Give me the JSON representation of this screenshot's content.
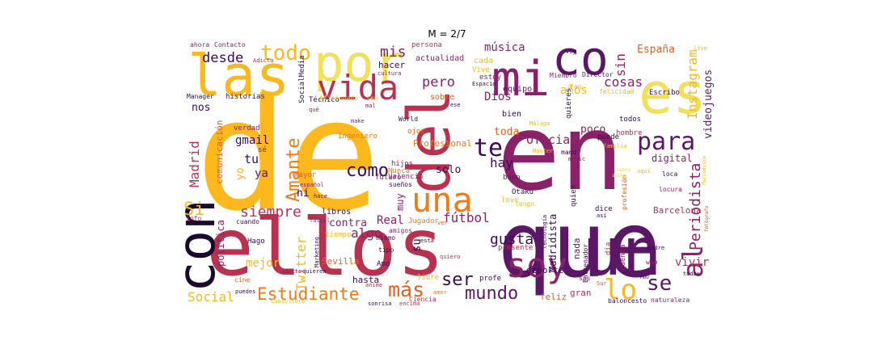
{
  "title": "M = 2/7",
  "palette": [
    "#fcb81c",
    "#f0e05a",
    "#e85e1e",
    "#f07b14",
    "#b8324f",
    "#8a226a",
    "#5a1765",
    "#3a0b58",
    "#1a0a2e",
    "#000004"
  ],
  "words": [
    {
      "text": "de",
      "color": "#fcb81c"
    },
    {
      "text": "en",
      "color": "#8a226a"
    },
    {
      "text": "que",
      "color": "#5a1765"
    },
    {
      "text": "ellos",
      "color": "#b8324f"
    },
    {
      "text": "las",
      "color": "#fcb81c"
    },
    {
      "text": "por",
      "color": "#f0e05a"
    },
    {
      "text": "mi",
      "color": "#8a226a"
    },
    {
      "text": "co",
      "color": "#5a1765"
    },
    {
      "text": "es",
      "color": "#f0e05a"
    },
    {
      "text": "del",
      "color": "#b8324f"
    },
    {
      "text": "un",
      "color": "#5a1765"
    },
    {
      "text": "con",
      "color": "#1a0a2e"
    },
    {
      "text": "vida",
      "color": "#b8324f"
    },
    {
      "text": "una",
      "color": "#f07b14"
    },
    {
      "text": "soy",
      "color": "#8a226a"
    },
    {
      "text": "lo",
      "color": "#fcb81c"
    },
    {
      "text": "al",
      "color": "#8a226a"
    },
    {
      "text": "todo",
      "color": "#fcb81c"
    },
    {
      "text": "para",
      "color": "#5a1765"
    },
    {
      "text": "te",
      "color": "#3a0b58"
    },
    {
      "text": "se",
      "color": "#5a1765"
    },
    {
      "text": "como",
      "color": "#3a0b58"
    },
    {
      "text": "ser",
      "color": "#3a0b58"
    },
    {
      "text": "más",
      "color": "#e85e1e"
    },
    {
      "text": "mundo",
      "color": "#5a1765"
    },
    {
      "text": "Estudiante",
      "color": "#f07b14"
    },
    {
      "text": "Si",
      "color": "#fcb81c"
    },
    {
      "text": "Amante",
      "color": "#f07b14"
    },
    {
      "text": "siempre",
      "color": "#b8324f"
    },
    {
      "text": "gusta",
      "color": "#3a0b58"
    },
    {
      "text": "Periodista",
      "color": "#8a226a"
    },
    {
      "text": "Instagram",
      "color": "#fcb81c"
    },
    {
      "text": "desde",
      "color": "#3a0b58"
    },
    {
      "text": "mis",
      "color": "#8a226a"
    },
    {
      "text": "pero",
      "color": "#8a226a"
    },
    {
      "text": "cosas",
      "color": "#8a226a"
    },
    {
      "text": "sin",
      "color": "#8a226a"
    },
    {
      "text": "fútbol",
      "color": "#8a226a"
    },
    {
      "text": "Madrid",
      "color": "#b8324f"
    },
    {
      "text": "Social",
      "color": "#fcb81c"
    },
    {
      "text": "Twitter",
      "color": "#fcb81c"
    },
    {
      "text": "Oficial",
      "color": "#8a226a"
    },
    {
      "text": "música",
      "color": "#8a226a"
    },
    {
      "text": "España",
      "color": "#e85e1e"
    },
    {
      "text": "Dios",
      "color": "#8a226a"
    },
    {
      "text": "años",
      "color": "#fcb81c"
    },
    {
      "text": "videojuegos",
      "color": "#5a1765"
    },
    {
      "text": "hay",
      "color": "#3a0b58"
    },
    {
      "text": "solo",
      "color": "#3a0b58"
    },
    {
      "text": "gmail",
      "color": "#3a0b58"
    },
    {
      "text": "tu",
      "color": "#3a0b58"
    },
    {
      "text": "yo",
      "color": "#fcb81c"
    },
    {
      "text": "ya",
      "color": "#5a1765"
    },
    {
      "text": "nos",
      "color": "#3a0b58"
    },
    {
      "text": "su",
      "color": "#3a0b58"
    },
    {
      "text": "muy",
      "color": "#8a226a"
    },
    {
      "text": "Real",
      "color": "#8a226a"
    },
    {
      "text": "algo",
      "color": "#8a226a"
    },
    {
      "text": "contra",
      "color": "#8a226a"
    },
    {
      "text": "mejor",
      "color": "#fcb81c"
    },
    {
      "text": "política",
      "color": "#8a226a"
    },
    {
      "text": "Madridista",
      "color": "#3a0b58"
    },
    {
      "text": "nada",
      "color": "#5a1765"
    },
    {
      "text": "poco",
      "color": "#8a226a"
    },
    {
      "text": "toda",
      "color": "#e85e1e"
    },
    {
      "text": "vivir",
      "color": "#b8324f"
    },
    {
      "text": "digital",
      "color": "#8a226a"
    },
    {
      "text": "Barcelona",
      "color": "#b8324f"
    },
    {
      "text": "deporte",
      "color": "#3a0b58"
    },
    {
      "text": "Profesional",
      "color": "#f07b14"
    },
    {
      "text": "Sevilla",
      "color": "#e85e1e"
    },
    {
      "text": "hasta",
      "color": "#3a0b58"
    },
    {
      "text": "Valencia",
      "color": "#8a226a"
    },
    {
      "text": "hijos",
      "color": "#8a226a"
    },
    {
      "text": "futuro",
      "color": "#8a226a"
    },
    {
      "text": "Ingeniero",
      "color": "#f07b14"
    },
    {
      "text": "ojos",
      "color": "#e85e1e"
    },
    {
      "text": "Nunca",
      "color": "#f07b14"
    },
    {
      "text": "sueños",
      "color": "#3a0b58"
    },
    {
      "text": "hacer",
      "color": "#3a0b58"
    },
    {
      "text": "actualidad",
      "color": "#8a226a"
    },
    {
      "text": "cada",
      "color": "#fcb81c"
    },
    {
      "text": "Vive",
      "color": "#fcb81c"
    },
    {
      "text": "estoy",
      "color": "#8a226a"
    },
    {
      "text": "persona",
      "color": "#b8324f"
    },
    {
      "text": "ahora",
      "color": "#8a226a"
    },
    {
      "text": "Contacto",
      "color": "#8a226a"
    },
    {
      "text": "Adicta",
      "color": "#b8324f"
    },
    {
      "text": "SocialMedia",
      "color": "#3a0b58"
    },
    {
      "text": "Manager",
      "color": "#3a0b58"
    },
    {
      "text": "historias",
      "color": "#3a0b58"
    },
    {
      "text": "Técnico",
      "color": "#3a0b58"
    },
    {
      "text": "Aficionado",
      "color": "#fcb81c"
    },
    {
      "text": "son",
      "color": "#fcb81c"
    },
    {
      "text": "mal",
      "color": "#8a226a"
    },
    {
      "text": "sobre",
      "color": "#e85e1e"
    },
    {
      "text": "ese",
      "color": "#3a0b58"
    },
    {
      "text": "equipo",
      "color": "#5a1765"
    },
    {
      "text": "Miembro",
      "color": "#8a226a"
    },
    {
      "text": "Director",
      "color": "#5a1765"
    },
    {
      "text": "Fan",
      "color": "#fcb81c"
    },
    {
      "text": "felicidad",
      "color": "#fcb81c"
    },
    {
      "text": "Escribo",
      "color": "#3a0b58"
    },
    {
      "text": "bien",
      "color": "#3a0b58"
    },
    {
      "text": "World",
      "color": "#3a0b58"
    },
    {
      "text": "quieres",
      "color": "#3a0b58"
    },
    {
      "text": "todos",
      "color": "#3a0b58"
    },
    {
      "text": "hombre",
      "color": "#b8324f"
    },
    {
      "text": "puede",
      "color": "#3a0b58"
    },
    {
      "text": "verdad",
      "color": "#8a226a"
    },
    {
      "text": "comunicación",
      "color": "#e85e1e"
    },
    {
      "text": "sé",
      "color": "#8a226a"
    },
    {
      "text": "mayor",
      "color": "#e85e1e"
    },
    {
      "text": "ni",
      "color": "#3a0b58"
    },
    {
      "text": "libros",
      "color": "#3a0b58"
    },
    {
      "text": "amigos",
      "color": "#8a226a"
    },
    {
      "text": "Jugador",
      "color": "#f07b14"
    },
    {
      "text": "mismo",
      "color": "#3a0b58"
    },
    {
      "text": "tipo",
      "color": "#3a0b58"
    },
    {
      "text": "quiero",
      "color": "#b8324f"
    },
    {
      "text": "Amo",
      "color": "#3a0b58"
    },
    {
      "text": "profe",
      "color": "#3a0b58"
    },
    {
      "text": "presente",
      "color": "#b8324f"
    },
    {
      "text": "feliz",
      "color": "#e85e1e"
    },
    {
      "text": "gran",
      "color": "#b8324f"
    },
    {
      "text": "baloncesto",
      "color": "#3a0b58"
    },
    {
      "text": "naturaleza",
      "color": "#8a226a"
    },
    {
      "text": "Ciencia",
      "color": "#b8324f"
    },
    {
      "text": "sonrisa",
      "color": "#3a0b58"
    },
    {
      "text": "encima",
      "color": "#b8324f"
    },
    {
      "text": "amor",
      "color": "#f07b14"
    },
    {
      "text": "libre",
      "color": "#fcb81c"
    },
    {
      "text": "anime",
      "color": "#b8324f"
    },
    {
      "text": "Consultora",
      "color": "#fcb81c"
    },
    {
      "text": "puedes",
      "color": "#3a0b58"
    },
    {
      "text": "adicto",
      "color": "#8a226a"
    },
    {
      "text": "quieren",
      "color": "#3a0b58"
    },
    {
      "text": "cine",
      "color": "#e85e1e"
    },
    {
      "text": "Hago",
      "color": "#3a0b58"
    },
    {
      "text": "cuando",
      "color": "#3a0b58"
    },
    {
      "text": "info",
      "color": "#b8324f"
    },
    {
      "text": "hace",
      "color": "#5a1765"
    },
    {
      "text": "español",
      "color": "#8a226a"
    },
    {
      "text": "tiempo",
      "color": "#fcb81c"
    },
    {
      "text": "Otaku",
      "color": "#3a0b58"
    },
    {
      "text": "tengo",
      "color": "#fcb81c"
    },
    {
      "text": "love",
      "color": "#fcb81c"
    },
    {
      "text": "buen",
      "color": "#5a1765"
    },
    {
      "text": "quien",
      "color": "#3a0b58"
    },
    {
      "text": "dice",
      "color": "#3a0b58"
    },
    {
      "text": "así",
      "color": "#3a0b58"
    },
    {
      "text": "profesión",
      "color": "#e85e1e"
    },
    {
      "text": "locura",
      "color": "#8a226a"
    },
    {
      "text": "loca",
      "color": "#3a0b58"
    },
    {
      "text": "aquí",
      "color": "#fcb81c"
    },
    {
      "text": "sabes",
      "color": "#f0e05a"
    },
    {
      "text": "Periodismo",
      "color": "#fcb81c"
    },
    {
      "text": "fotógrafo",
      "color": "#e85e1e"
    },
    {
      "text": "cuenta",
      "color": "#8a226a"
    },
    {
      "text": "día",
      "color": "#b8324f"
    },
    {
      "text": "web",
      "color": "#8a226a"
    },
    {
      "text": "padre",
      "color": "#3a0b58"
    },
    {
      "text": "todas",
      "color": "#3a0b58"
    },
    {
      "text": "Sur",
      "color": "#e85e1e"
    },
    {
      "text": "MOU",
      "color": "#3a0b58"
    },
    {
      "text": "Entrenador",
      "color": "#3a0b58"
    },
    {
      "text": "tecnología",
      "color": "#3a0b58"
    },
    {
      "text": "Marketing",
      "color": "#3a0b58"
    },
    {
      "text": "está",
      "color": "#3a0b58"
    },
    {
      "text": "ver",
      "color": "#e85e1e"
    },
    {
      "text": "mano",
      "color": "#3a0b58"
    },
    {
      "text": "music",
      "color": "#8a226a"
    },
    {
      "text": "Máster",
      "color": "#fcb81c"
    },
    {
      "text": "familia",
      "color": "#fcb81c"
    },
    {
      "text": "voy",
      "color": "#3a0b58"
    },
    {
      "text": "live",
      "color": "#fcb81c"
    },
    {
      "text": "Espacio",
      "color": "#3a0b58"
    },
    {
      "text": "cultura",
      "color": "#8a226a"
    },
    {
      "text": "Málaga",
      "color": "#fcb81c"
    },
    {
      "text": "make",
      "color": "#8a226a"
    },
    {
      "text": "qué",
      "color": "#8a226a"
    },
    {
      "text": "fútbol",
      "color": "#8a226a"
    },
    {
      "text": "sus",
      "color": "#8a226a"
    },
    {
      "text": "sabes",
      "color": "#f0e05a"
    }
  ]
}
